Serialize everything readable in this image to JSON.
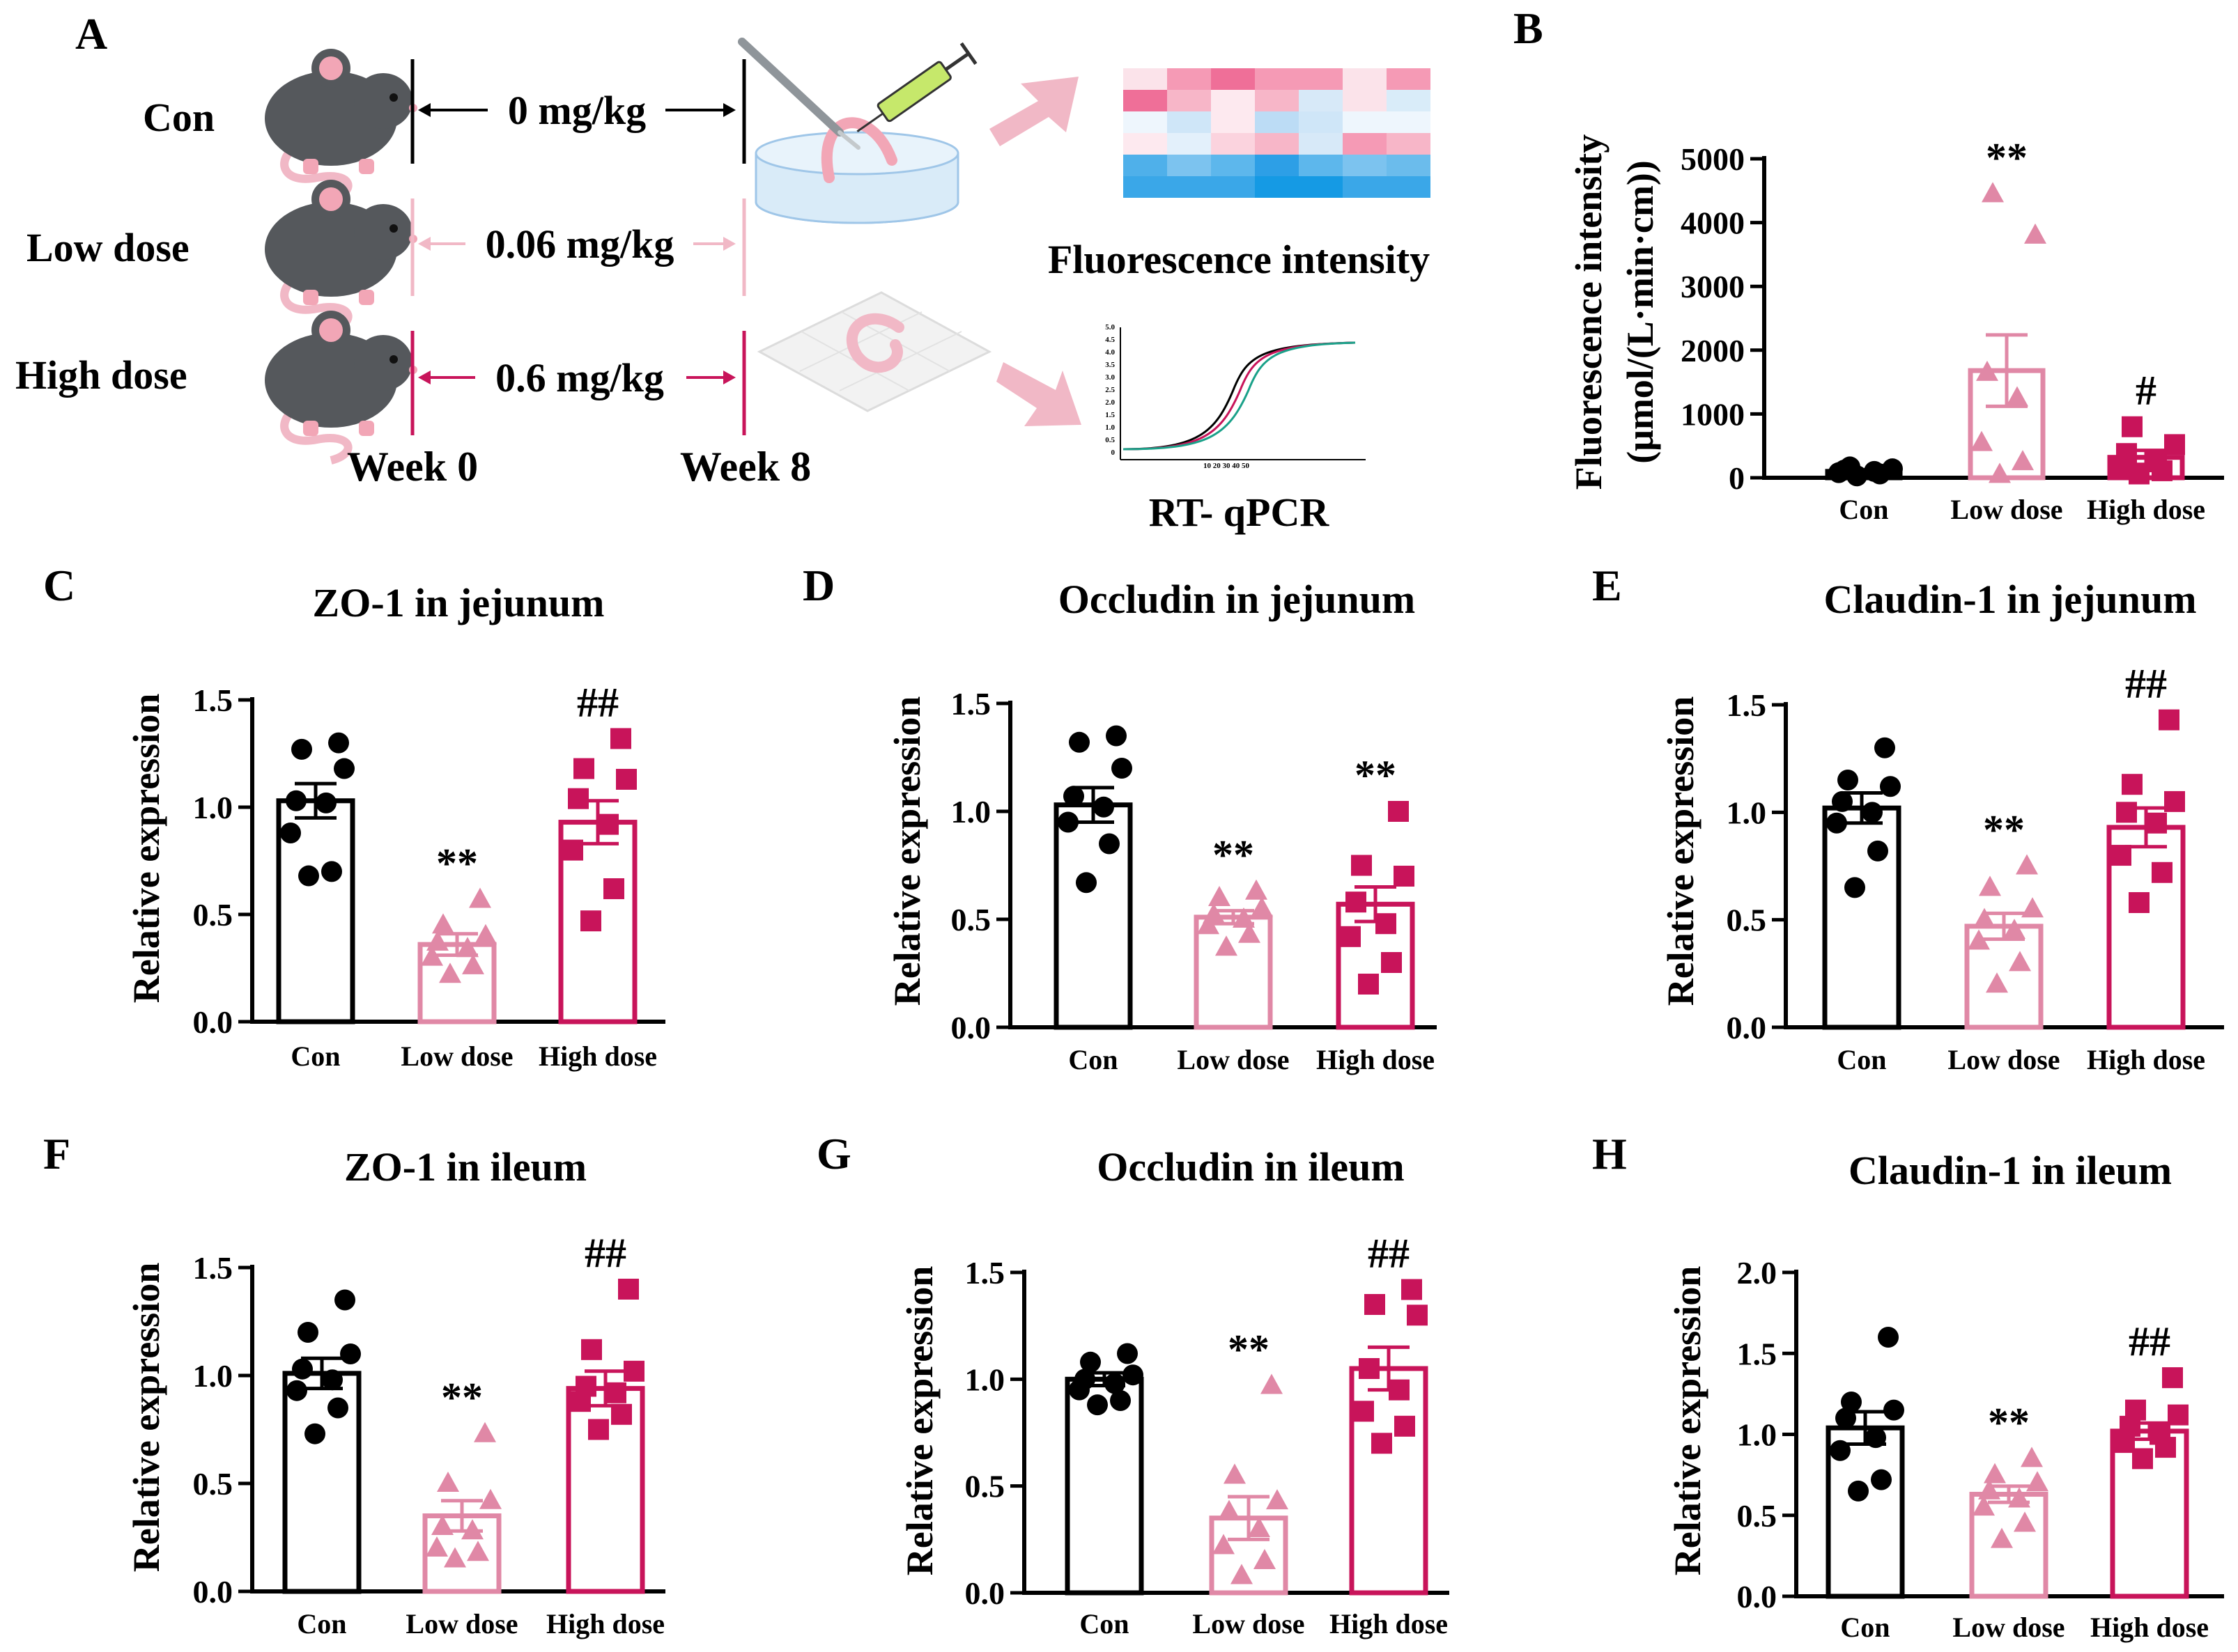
{
  "colors": {
    "con": "#000000",
    "low": "#e088a6",
    "high": "#c8145a",
    "arrow": "#f1b8c6"
  },
  "panel_a": {
    "letter": "A",
    "groups": [
      {
        "name": "Con",
        "dose": "0 mg/kg"
      },
      {
        "name": "Low dose",
        "dose": "0.06 mg/kg"
      },
      {
        "name": "High dose",
        "dose": "0.6 mg/kg"
      }
    ],
    "week_start": "Week 0",
    "week_end": "Week 8",
    "fluor_label": "Fluorescence  intensity",
    "qpcr_label": "RT- qPCR",
    "qpcr_ticks_y": [
      "5.0",
      "4.5",
      "4.0",
      "3.5",
      "3.0",
      "2.5",
      "2.0",
      "1.5",
      "1.0",
      "0.5",
      "0"
    ],
    "qpcr_ticks_x": "10 20 30 40 50"
  },
  "chart_data": [
    {
      "id": "B",
      "type": "bar",
      "title": "",
      "ylabel_lines": [
        "Fluorescence intensity",
        "(μmol/(L·min·cm))"
      ],
      "categories": [
        "Con",
        "Low dose",
        "High dose"
      ],
      "ylim": [
        0,
        5000
      ],
      "yticks": [
        0,
        1000,
        2000,
        3000,
        4000,
        5000
      ],
      "yticklabels": [
        "0",
        "1000",
        "2000",
        "3000",
        "4000",
        "5000"
      ],
      "means": [
        100,
        1680,
        320
      ],
      "sems": [
        25,
        560,
        110
      ],
      "points": [
        [
          30,
          60,
          80,
          100,
          120,
          140,
          170
        ],
        [
          50,
          250,
          550,
          1250,
          1650,
          3800,
          4450
        ],
        [
          60,
          110,
          150,
          250,
          380,
          520,
          800
        ]
      ],
      "sig": [
        "",
        "**",
        "#"
      ]
    },
    {
      "id": "C",
      "type": "bar",
      "title": "ZO-1 in jejunum",
      "ylabel": "Relative expression",
      "categories": [
        "Con",
        "Low dose",
        "High dose"
      ],
      "ylim": [
        0,
        1.5
      ],
      "yticks": [
        0,
        0.5,
        1.0,
        1.5
      ],
      "yticklabels": [
        "0.0",
        "0.5",
        "1.0",
        "1.5"
      ],
      "means": [
        1.03,
        0.36,
        0.93
      ],
      "sems": [
        0.08,
        0.05,
        0.1
      ],
      "points": [
        [
          0.68,
          0.7,
          0.88,
          1.02,
          1.03,
          1.18,
          1.27,
          1.3
        ],
        [
          0.22,
          0.26,
          0.3,
          0.34,
          0.37,
          0.4,
          0.45,
          0.57
        ],
        [
          0.47,
          0.62,
          0.8,
          0.92,
          1.04,
          1.13,
          1.18,
          1.32
        ]
      ],
      "sig": [
        "",
        "**",
        "##"
      ]
    },
    {
      "id": "D",
      "type": "bar",
      "title": "Occludin in jejunum",
      "ylabel": "Relative expression",
      "categories": [
        "Con",
        "Low dose",
        "High dose"
      ],
      "ylim": [
        0,
        1.5
      ],
      "yticks": [
        0,
        0.5,
        1.0,
        1.5
      ],
      "yticklabels": [
        "0.0",
        "0.5",
        "1.0",
        "1.5"
      ],
      "means": [
        1.03,
        0.51,
        0.57
      ],
      "sems": [
        0.08,
        0.03,
        0.08
      ],
      "points": [
        [
          0.67,
          0.85,
          0.95,
          1.02,
          1.07,
          1.2,
          1.32,
          1.35
        ],
        [
          0.37,
          0.43,
          0.47,
          0.5,
          0.52,
          0.55,
          0.6,
          0.63
        ],
        [
          0.2,
          0.3,
          0.42,
          0.48,
          0.58,
          0.7,
          0.75,
          1.0
        ]
      ],
      "sig": [
        "",
        "**",
        "**"
      ]
    },
    {
      "id": "E",
      "type": "bar",
      "title": "Claudin-1 in jejunum",
      "ylabel": "Relative expression",
      "categories": [
        "Con",
        "Low dose",
        "High dose"
      ],
      "ylim": [
        0,
        1.5
      ],
      "yticks": [
        0,
        0.5,
        1.0,
        1.5
      ],
      "yticklabels": [
        "0.0",
        "0.5",
        "1.0",
        "1.5"
      ],
      "means": [
        1.02,
        0.47,
        0.93
      ],
      "sems": [
        0.07,
        0.06,
        0.09
      ],
      "points": [
        [
          0.65,
          0.82,
          0.95,
          1.0,
          1.05,
          1.12,
          1.15,
          1.3
        ],
        [
          0.2,
          0.3,
          0.4,
          0.45,
          0.5,
          0.55,
          0.65,
          0.75
        ],
        [
          0.58,
          0.72,
          0.8,
          0.95,
          1.0,
          1.05,
          1.13,
          1.43
        ]
      ],
      "sig": [
        "",
        "**",
        "##"
      ]
    },
    {
      "id": "F",
      "type": "bar",
      "title": "ZO-1 in ileum",
      "ylabel": "Relative expression",
      "categories": [
        "Con",
        "Low dose",
        "High dose"
      ],
      "ylim": [
        0,
        1.5
      ],
      "yticks": [
        0,
        0.5,
        1.0,
        1.5
      ],
      "yticklabels": [
        "0.0",
        "0.5",
        "1.0",
        "1.5"
      ],
      "means": [
        1.01,
        0.35,
        0.94
      ],
      "sems": [
        0.07,
        0.07,
        0.08
      ],
      "points": [
        [
          0.73,
          0.85,
          0.93,
          0.98,
          1.03,
          1.1,
          1.2,
          1.35
        ],
        [
          0.15,
          0.18,
          0.2,
          0.28,
          0.3,
          0.42,
          0.5,
          0.73
        ],
        [
          0.75,
          0.82,
          0.88,
          0.92,
          0.95,
          1.02,
          1.12,
          1.4
        ]
      ],
      "sig": [
        "",
        "**",
        "##"
      ]
    },
    {
      "id": "G",
      "type": "bar",
      "title": "Occludin in ileum",
      "ylabel": "Relative expression",
      "categories": [
        "Con",
        "Low dose",
        "High dose"
      ],
      "ylim": [
        0,
        1.5
      ],
      "yticks": [
        0,
        0.5,
        1.0,
        1.5
      ],
      "yticklabels": [
        "0.0",
        "0.5",
        "1.0",
        "1.5"
      ],
      "means": [
        1.0,
        0.35,
        1.05
      ],
      "sems": [
        0.03,
        0.1,
        0.1
      ],
      "points": [
        [
          0.88,
          0.9,
          0.95,
          0.98,
          1.0,
          1.02,
          1.08,
          1.12
        ],
        [
          0.08,
          0.15,
          0.22,
          0.3,
          0.38,
          0.43,
          0.55,
          0.97
        ],
        [
          0.7,
          0.78,
          0.85,
          0.95,
          1.05,
          1.3,
          1.35,
          1.42
        ]
      ],
      "sig": [
        "",
        "**",
        "##"
      ]
    },
    {
      "id": "H",
      "type": "bar",
      "title": "Claudin-1 in ileum",
      "ylabel": "Relative expression",
      "categories": [
        "Con",
        "Low dose",
        "High dose"
      ],
      "ylim": [
        0,
        2.0
      ],
      "yticks": [
        0,
        0.5,
        1.0,
        1.5,
        2.0
      ],
      "yticklabels": [
        "0.0",
        "0.5",
        "1.0",
        "1.5",
        "2.0"
      ],
      "means": [
        1.04,
        0.63,
        1.02
      ],
      "sems": [
        0.1,
        0.05,
        0.05
      ],
      "points": [
        [
          0.65,
          0.72,
          0.9,
          0.98,
          1.1,
          1.15,
          1.2,
          1.6
        ],
        [
          0.35,
          0.45,
          0.55,
          0.6,
          0.65,
          0.7,
          0.75,
          0.85
        ],
        [
          0.85,
          0.92,
          0.95,
          1.0,
          1.05,
          1.12,
          1.15,
          1.35
        ]
      ],
      "sig": [
        "",
        "**",
        "##"
      ]
    }
  ]
}
